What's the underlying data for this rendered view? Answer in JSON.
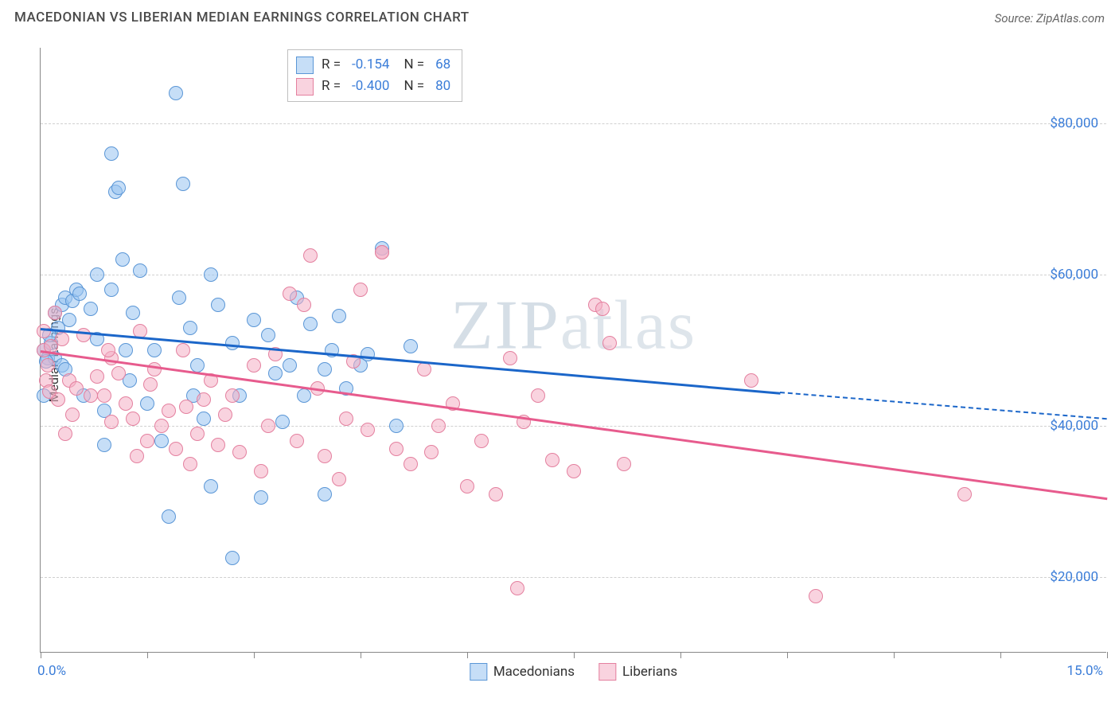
{
  "header": {
    "title": "MACEDONIAN VS LIBERIAN MEDIAN EARNINGS CORRELATION CHART",
    "source": "Source: ZipAtlas.com"
  },
  "chart": {
    "type": "scatter",
    "y_axis_label": "Median Earnings",
    "background_color": "#ffffff",
    "grid_color": "#d0d0d0",
    "axis_color": "#888888",
    "label_color": "#3b7dd8",
    "xlim": [
      0,
      15
    ],
    "ylim": [
      10000,
      90000
    ],
    "ytick_values": [
      20000,
      40000,
      60000,
      80000
    ],
    "ytick_labels": [
      "$20,000",
      "$40,000",
      "$60,000",
      "$80,000"
    ],
    "xtick_values": [
      0,
      1.5,
      3,
      4.5,
      6,
      7.5,
      9,
      10.5,
      12,
      13.5,
      15
    ],
    "xtick_labels_visible": {
      "0": "0.0%",
      "15": "15.0%"
    },
    "watermark": "ZIPatlas",
    "series": [
      {
        "name": "Macedonians",
        "r_value": "-0.154",
        "n_value": "68",
        "color_fill": "rgba(151,194,240,0.55)",
        "color_stroke": "#5a96d6",
        "trend_color": "#1b66c9",
        "trend": {
          "x1": 0,
          "y1": 53000,
          "x2": 10.4,
          "y2": 44500
        },
        "trend_dash": {
          "x1": 10.4,
          "y1": 44500,
          "x2": 15,
          "y2": 41000
        },
        "points": [
          [
            0.05,
            50000
          ],
          [
            0.1,
            49000
          ],
          [
            0.15,
            51000
          ],
          [
            0.2,
            55000
          ],
          [
            0.25,
            53000
          ],
          [
            0.3,
            56000
          ],
          [
            0.35,
            57000
          ],
          [
            0.4,
            54000
          ],
          [
            0.45,
            56500
          ],
          [
            0.5,
            58000
          ],
          [
            0.2,
            49000
          ],
          [
            0.3,
            48000
          ],
          [
            0.8,
            60000
          ],
          [
            0.8,
            51500
          ],
          [
            0.9,
            37500
          ],
          [
            1.0,
            76000
          ],
          [
            1.0,
            58000
          ],
          [
            1.05,
            71000
          ],
          [
            1.1,
            71500
          ],
          [
            1.2,
            50000
          ],
          [
            1.3,
            55000
          ],
          [
            1.4,
            60500
          ],
          [
            1.5,
            43000
          ],
          [
            1.6,
            50000
          ],
          [
            1.7,
            38000
          ],
          [
            1.8,
            28000
          ],
          [
            1.9,
            84000
          ],
          [
            2.0,
            72000
          ],
          [
            2.1,
            53000
          ],
          [
            2.2,
            48000
          ],
          [
            2.3,
            41000
          ],
          [
            2.4,
            60000
          ],
          [
            2.4,
            32000
          ],
          [
            2.5,
            56000
          ],
          [
            2.7,
            51000
          ],
          [
            2.7,
            22500
          ],
          [
            3.0,
            54000
          ],
          [
            3.1,
            30500
          ],
          [
            3.2,
            52000
          ],
          [
            3.3,
            47000
          ],
          [
            3.5,
            48000
          ],
          [
            3.6,
            57000
          ],
          [
            3.7,
            44000
          ],
          [
            3.8,
            53500
          ],
          [
            4.0,
            47500
          ],
          [
            4.0,
            31000
          ],
          [
            4.2,
            54500
          ],
          [
            4.3,
            45000
          ],
          [
            4.5,
            48000
          ],
          [
            4.6,
            49500
          ],
          [
            4.8,
            63500
          ],
          [
            5.0,
            40000
          ],
          [
            5.2,
            50500
          ],
          [
            4.1,
            50000
          ],
          [
            2.8,
            44000
          ],
          [
            1.95,
            57000
          ],
          [
            0.6,
            44000
          ],
          [
            0.55,
            57500
          ],
          [
            0.7,
            55500
          ],
          [
            0.9,
            42000
          ],
          [
            1.15,
            62000
          ],
          [
            1.25,
            46000
          ],
          [
            3.4,
            40500
          ],
          [
            2.15,
            44000
          ],
          [
            0.35,
            47500
          ],
          [
            0.12,
            52000
          ],
          [
            0.05,
            44000
          ],
          [
            0.08,
            48500
          ]
        ]
      },
      {
        "name": "Liberians",
        "r_value": "-0.400",
        "n_value": "80",
        "color_fill": "rgba(244,174,196,0.55)",
        "color_stroke": "#e4809f",
        "trend_color": "#e75b8d",
        "trend": {
          "x1": 0,
          "y1": 50000,
          "x2": 15,
          "y2": 30500
        },
        "points": [
          [
            0.05,
            50000
          ],
          [
            0.1,
            48000
          ],
          [
            0.15,
            50500
          ],
          [
            0.2,
            55000
          ],
          [
            0.3,
            51500
          ],
          [
            0.4,
            46000
          ],
          [
            0.5,
            45000
          ],
          [
            0.6,
            52000
          ],
          [
            0.7,
            44000
          ],
          [
            0.8,
            46500
          ],
          [
            0.9,
            44000
          ],
          [
            1.0,
            49000
          ],
          [
            1.1,
            47000
          ],
          [
            1.2,
            43000
          ],
          [
            1.3,
            41000
          ],
          [
            1.4,
            52500
          ],
          [
            1.5,
            38000
          ],
          [
            1.6,
            47500
          ],
          [
            1.7,
            40000
          ],
          [
            1.8,
            42000
          ],
          [
            1.9,
            37000
          ],
          [
            2.0,
            50000
          ],
          [
            2.1,
            35000
          ],
          [
            2.2,
            39000
          ],
          [
            2.3,
            43500
          ],
          [
            2.4,
            46000
          ],
          [
            2.5,
            37500
          ],
          [
            2.6,
            41500
          ],
          [
            2.7,
            44000
          ],
          [
            2.8,
            36500
          ],
          [
            3.0,
            48000
          ],
          [
            3.1,
            34000
          ],
          [
            3.2,
            40000
          ],
          [
            3.3,
            49500
          ],
          [
            3.5,
            57500
          ],
          [
            3.6,
            38000
          ],
          [
            3.7,
            56000
          ],
          [
            3.8,
            62500
          ],
          [
            3.9,
            45000
          ],
          [
            4.0,
            36000
          ],
          [
            4.2,
            33000
          ],
          [
            4.3,
            41000
          ],
          [
            4.5,
            58000
          ],
          [
            4.6,
            39500
          ],
          [
            4.8,
            63000
          ],
          [
            4.8,
            63000
          ],
          [
            5.0,
            37000
          ],
          [
            5.2,
            35000
          ],
          [
            5.4,
            47500
          ],
          [
            5.6,
            40000
          ],
          [
            5.8,
            43000
          ],
          [
            6.0,
            32000
          ],
          [
            6.2,
            38000
          ],
          [
            6.4,
            31000
          ],
          [
            6.6,
            49000
          ],
          [
            6.7,
            18500
          ],
          [
            6.8,
            40500
          ],
          [
            7.0,
            44000
          ],
          [
            7.2,
            35500
          ],
          [
            7.5,
            34000
          ],
          [
            7.8,
            56000
          ],
          [
            7.9,
            55500
          ],
          [
            8.0,
            51000
          ],
          [
            8.2,
            35000
          ],
          [
            10.0,
            46000
          ],
          [
            10.9,
            17500
          ],
          [
            13.0,
            31000
          ],
          [
            0.25,
            43500
          ],
          [
            0.35,
            39000
          ],
          [
            0.45,
            41500
          ],
          [
            0.05,
            52500
          ],
          [
            0.08,
            46000
          ],
          [
            0.12,
            44500
          ],
          [
            1.35,
            36000
          ],
          [
            2.05,
            42500
          ],
          [
            1.55,
            45500
          ],
          [
            4.4,
            48500
          ],
          [
            5.5,
            36500
          ],
          [
            1.0,
            40500
          ],
          [
            0.95,
            50000
          ]
        ]
      }
    ],
    "bottom_legend": [
      {
        "label": "Macedonians",
        "fill": "rgba(151,194,240,0.55)",
        "stroke": "#5a96d6"
      },
      {
        "label": "Liberians",
        "fill": "rgba(244,174,196,0.55)",
        "stroke": "#e4809f"
      }
    ]
  }
}
